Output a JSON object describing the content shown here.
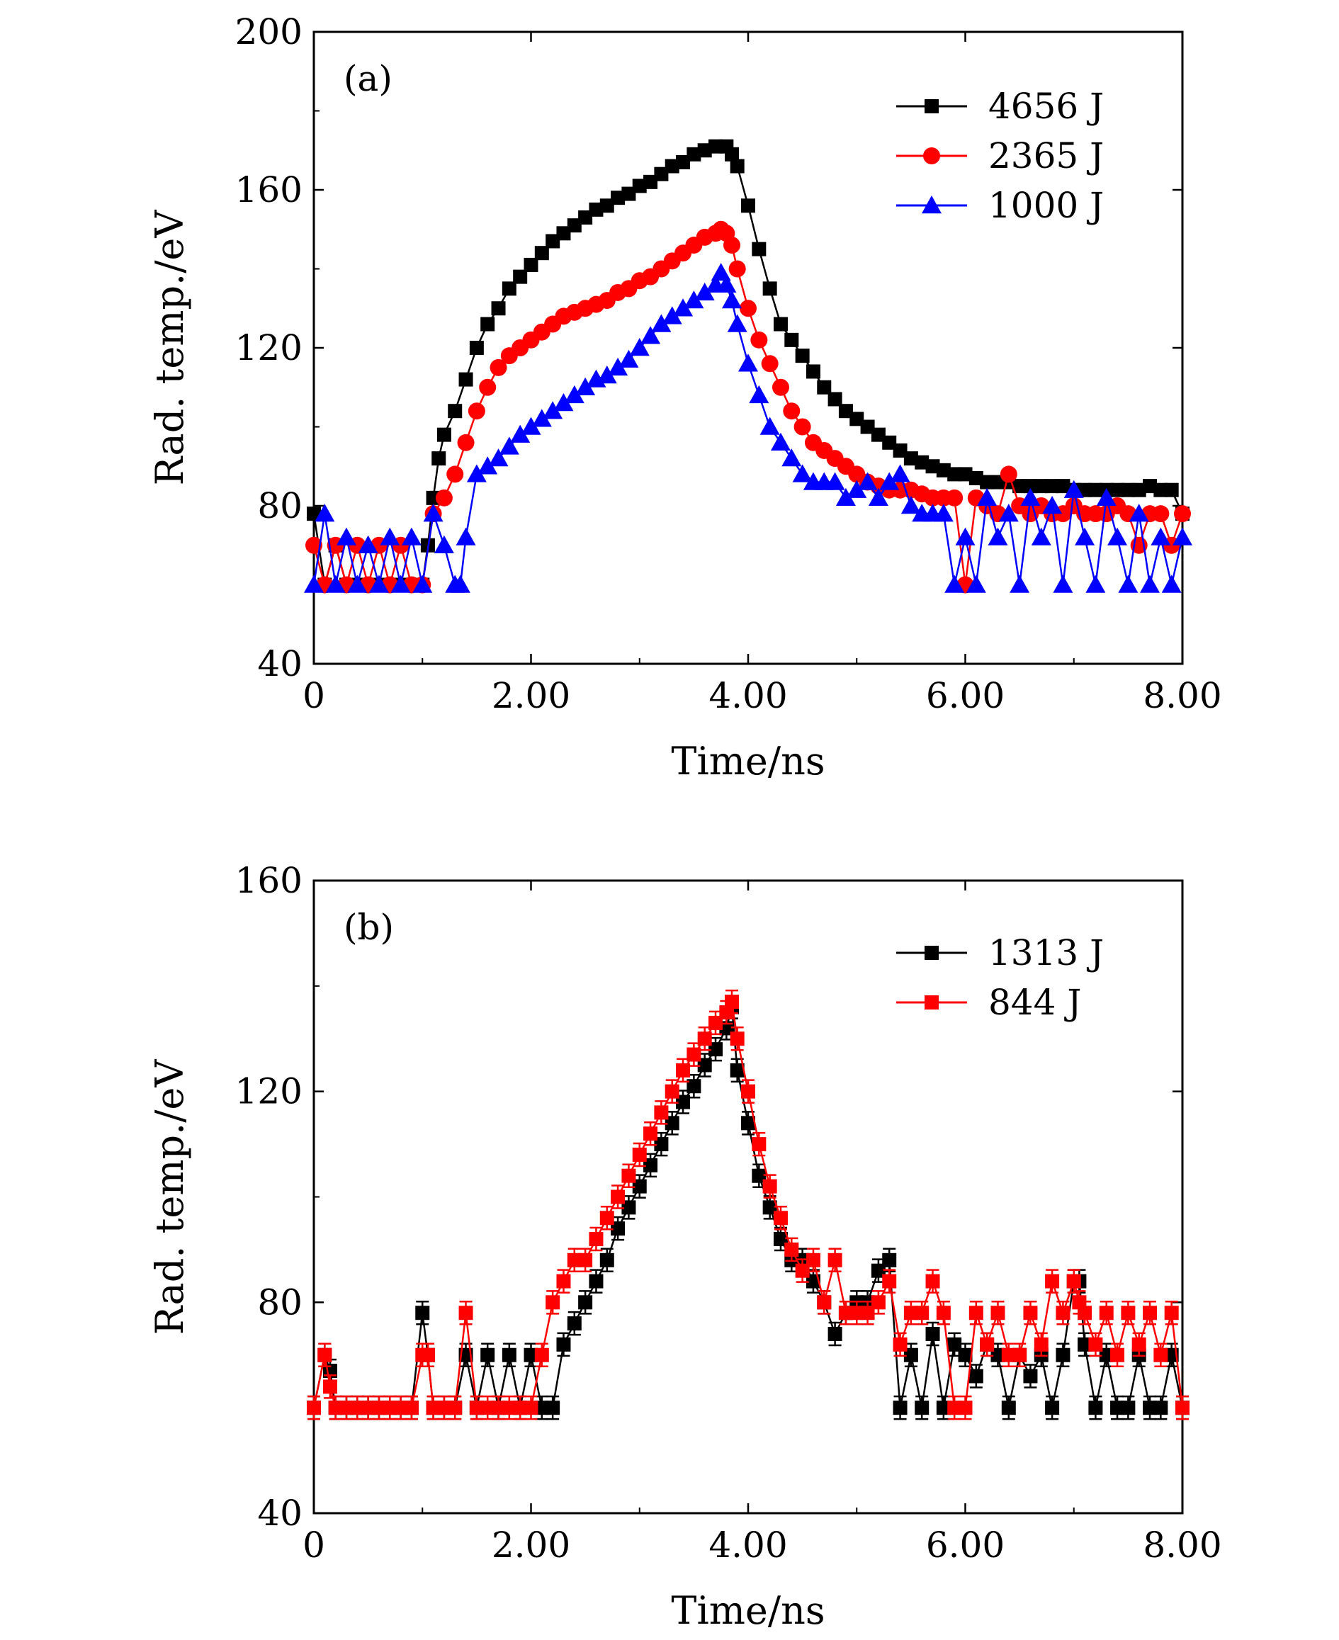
{
  "chart_data": [
    {
      "type": "line",
      "panel_label": "(a)",
      "xlabel": "Time/ns",
      "ylabel": "Rad. temp./eV",
      "xlim": [
        0,
        8.0
      ],
      "ylim": [
        40,
        200
      ],
      "x_ticks": [
        0,
        2,
        4,
        6,
        8
      ],
      "x_tick_labels": [
        "0",
        "2.00",
        "4.00",
        "6.00",
        "8.00"
      ],
      "y_ticks": [
        40,
        80,
        120,
        160,
        200
      ],
      "y_tick_labels": [
        "40",
        "80",
        "120",
        "160",
        "200"
      ],
      "grid": false,
      "legend_position": "top-right",
      "series": [
        {
          "name": "4656 J",
          "color": "#000000",
          "marker": "square",
          "x": [
            0,
            0.1,
            0.2,
            0.3,
            0.4,
            0.5,
            0.6,
            0.7,
            0.8,
            0.9,
            1.0,
            1.05,
            1.1,
            1.15,
            1.2,
            1.3,
            1.4,
            1.5,
            1.6,
            1.7,
            1.8,
            1.9,
            2.0,
            2.1,
            2.2,
            2.3,
            2.4,
            2.5,
            2.6,
            2.7,
            2.8,
            2.9,
            3.0,
            3.1,
            3.2,
            3.3,
            3.4,
            3.5,
            3.6,
            3.7,
            3.8,
            3.85,
            3.9,
            4.0,
            4.1,
            4.2,
            4.3,
            4.4,
            4.5,
            4.6,
            4.7,
            4.8,
            4.9,
            5.0,
            5.1,
            5.2,
            5.3,
            5.4,
            5.5,
            5.6,
            5.7,
            5.8,
            5.9,
            6.0,
            6.1,
            6.2,
            6.3,
            6.4,
            6.5,
            6.6,
            6.7,
            6.8,
            6.9,
            7.0,
            7.1,
            7.2,
            7.3,
            7.4,
            7.5,
            7.6,
            7.7,
            7.8,
            7.9,
            8.0
          ],
          "y": [
            78,
            60,
            70,
            60,
            60,
            60,
            60,
            60,
            60,
            60,
            60,
            70,
            82,
            92,
            98,
            104,
            112,
            120,
            126,
            130,
            135,
            138,
            141,
            144,
            147,
            149,
            151,
            153,
            155,
            156,
            158,
            159,
            161,
            162,
            164,
            166,
            167,
            169,
            170,
            171,
            171,
            169,
            166,
            156,
            145,
            135,
            126,
            122,
            118,
            114,
            110,
            107,
            104,
            102,
            100,
            98,
            96,
            94,
            92,
            91,
            90,
            89,
            88,
            88,
            87,
            86,
            86,
            86,
            85,
            85,
            85,
            85,
            85,
            84,
            84,
            84,
            84,
            84,
            84,
            84,
            85,
            84,
            84,
            78
          ]
        },
        {
          "name": "2365 J",
          "color": "#ff0000",
          "marker": "circle",
          "x": [
            0,
            0.1,
            0.2,
            0.3,
            0.4,
            0.5,
            0.6,
            0.7,
            0.8,
            0.9,
            1.0,
            1.1,
            1.2,
            1.3,
            1.4,
            1.5,
            1.6,
            1.7,
            1.8,
            1.9,
            2.0,
            2.1,
            2.2,
            2.3,
            2.4,
            2.5,
            2.6,
            2.7,
            2.8,
            2.9,
            3.0,
            3.1,
            3.2,
            3.3,
            3.4,
            3.5,
            3.6,
            3.7,
            3.75,
            3.8,
            3.85,
            3.9,
            4.0,
            4.1,
            4.2,
            4.3,
            4.4,
            4.5,
            4.6,
            4.7,
            4.8,
            4.9,
            5.0,
            5.1,
            5.2,
            5.3,
            5.4,
            5.5,
            5.6,
            5.7,
            5.8,
            5.9,
            6.0,
            6.1,
            6.2,
            6.3,
            6.4,
            6.5,
            6.6,
            6.7,
            6.8,
            6.9,
            7.0,
            7.1,
            7.2,
            7.3,
            7.4,
            7.5,
            7.6,
            7.7,
            7.8,
            7.9,
            8.0
          ],
          "y": [
            70,
            60,
            70,
            60,
            70,
            60,
            70,
            60,
            70,
            60,
            60,
            78,
            82,
            88,
            96,
            104,
            110,
            115,
            118,
            120,
            122,
            124,
            126,
            128,
            129,
            130,
            131,
            132,
            134,
            135,
            137,
            138,
            140,
            142,
            144,
            146,
            148,
            149,
            150,
            149,
            146,
            140,
            130,
            122,
            116,
            110,
            104,
            100,
            96,
            94,
            92,
            90,
            88,
            86,
            85,
            84,
            84,
            84,
            83,
            82,
            82,
            82,
            60,
            82,
            80,
            78,
            88,
            80,
            78,
            80,
            78,
            78,
            80,
            78,
            78,
            78,
            80,
            78,
            70,
            78,
            78,
            70,
            78
          ]
        },
        {
          "name": "1000 J",
          "color": "#0000ff",
          "marker": "triangle",
          "x": [
            0,
            0.1,
            0.2,
            0.3,
            0.4,
            0.5,
            0.6,
            0.7,
            0.8,
            0.9,
            1.0,
            1.1,
            1.2,
            1.3,
            1.35,
            1.4,
            1.5,
            1.6,
            1.7,
            1.8,
            1.9,
            2.0,
            2.1,
            2.2,
            2.3,
            2.4,
            2.5,
            2.6,
            2.7,
            2.8,
            2.9,
            3.0,
            3.1,
            3.2,
            3.3,
            3.4,
            3.5,
            3.6,
            3.7,
            3.75,
            3.8,
            3.85,
            3.9,
            4.0,
            4.1,
            4.2,
            4.3,
            4.4,
            4.5,
            4.6,
            4.7,
            4.8,
            4.9,
            5.0,
            5.1,
            5.2,
            5.3,
            5.4,
            5.5,
            5.6,
            5.7,
            5.8,
            5.9,
            6.0,
            6.1,
            6.2,
            6.3,
            6.4,
            6.5,
            6.6,
            6.7,
            6.8,
            6.9,
            7.0,
            7.1,
            7.2,
            7.3,
            7.4,
            7.5,
            7.6,
            7.7,
            7.8,
            7.9,
            8.0
          ],
          "y": [
            60,
            78,
            60,
            72,
            60,
            70,
            60,
            72,
            60,
            72,
            60,
            78,
            70,
            60,
            60,
            72,
            88,
            90,
            92,
            95,
            98,
            100,
            102,
            104,
            106,
            108,
            110,
            112,
            113,
            115,
            117,
            120,
            123,
            126,
            128,
            130,
            132,
            134,
            136,
            139,
            136,
            132,
            126,
            116,
            108,
            100,
            96,
            92,
            88,
            86,
            86,
            86,
            82,
            84,
            86,
            82,
            86,
            88,
            80,
            78,
            78,
            78,
            60,
            72,
            60,
            82,
            72,
            78,
            60,
            82,
            72,
            80,
            60,
            84,
            72,
            60,
            82,
            72,
            60,
            78,
            60,
            72,
            60,
            72
          ]
        }
      ]
    },
    {
      "type": "line",
      "panel_label": "(b)",
      "xlabel": "Time/ns",
      "ylabel": "Rad. temp./eV",
      "xlim": [
        0,
        8.0
      ],
      "ylim": [
        40,
        160
      ],
      "x_ticks": [
        0,
        2,
        4,
        6,
        8
      ],
      "x_tick_labels": [
        "0",
        "2.00",
        "4.00",
        "6.00",
        "8.00"
      ],
      "y_ticks": [
        40,
        80,
        120,
        160
      ],
      "y_tick_labels": [
        "40",
        "80",
        "120",
        "160"
      ],
      "grid": false,
      "legend_position": "top-right",
      "series": [
        {
          "name": "1313 J",
          "color": "#000000",
          "marker": "square",
          "error_bars": true,
          "x": [
            0,
            0.1,
            0.15,
            0.2,
            0.3,
            0.4,
            0.5,
            0.6,
            0.7,
            0.8,
            0.9,
            1.0,
            1.05,
            1.1,
            1.2,
            1.3,
            1.4,
            1.5,
            1.6,
            1.7,
            1.8,
            1.9,
            2.0,
            2.1,
            2.2,
            2.3,
            2.4,
            2.5,
            2.6,
            2.7,
            2.8,
            2.9,
            3.0,
            3.1,
            3.2,
            3.3,
            3.4,
            3.5,
            3.6,
            3.7,
            3.8,
            3.85,
            3.9,
            4.0,
            4.1,
            4.2,
            4.3,
            4.4,
            4.5,
            4.6,
            4.7,
            4.8,
            4.9,
            5.0,
            5.1,
            5.2,
            5.3,
            5.4,
            5.5,
            5.6,
            5.7,
            5.8,
            5.9,
            6.0,
            6.1,
            6.2,
            6.3,
            6.4,
            6.5,
            6.6,
            6.7,
            6.8,
            6.9,
            7.0,
            7.05,
            7.1,
            7.2,
            7.3,
            7.4,
            7.5,
            7.6,
            7.7,
            7.8,
            7.9,
            8.0
          ],
          "y": [
            60,
            70,
            67,
            60,
            60,
            60,
            60,
            60,
            60,
            60,
            60,
            78,
            70,
            60,
            60,
            60,
            70,
            60,
            70,
            60,
            70,
            60,
            70,
            60,
            60,
            72,
            76,
            80,
            84,
            88,
            94,
            98,
            102,
            106,
            110,
            114,
            118,
            121,
            125,
            128,
            132,
            136,
            124,
            114,
            104,
            98,
            92,
            88,
            88,
            84,
            80,
            74,
            78,
            80,
            80,
            86,
            88,
            60,
            70,
            60,
            74,
            60,
            72,
            70,
            66,
            72,
            70,
            60,
            70,
            66,
            70,
            60,
            70,
            84,
            84,
            72,
            60,
            70,
            60,
            60,
            70,
            60,
            60,
            70,
            60
          ]
        },
        {
          "name": "844 J",
          "color": "#ff0000",
          "marker": "square",
          "error_bars": true,
          "x": [
            0,
            0.1,
            0.15,
            0.2,
            0.3,
            0.4,
            0.5,
            0.6,
            0.7,
            0.8,
            0.9,
            1.0,
            1.05,
            1.1,
            1.2,
            1.3,
            1.4,
            1.5,
            1.6,
            1.7,
            1.8,
            1.9,
            2.0,
            2.1,
            2.2,
            2.3,
            2.4,
            2.5,
            2.6,
            2.7,
            2.8,
            2.9,
            3.0,
            3.1,
            3.2,
            3.3,
            3.4,
            3.5,
            3.6,
            3.7,
            3.8,
            3.85,
            3.9,
            4.0,
            4.1,
            4.2,
            4.3,
            4.4,
            4.5,
            4.6,
            4.7,
            4.8,
            4.9,
            5.0,
            5.1,
            5.2,
            5.3,
            5.4,
            5.5,
            5.6,
            5.7,
            5.8,
            5.9,
            6.0,
            6.1,
            6.2,
            6.3,
            6.4,
            6.5,
            6.6,
            6.7,
            6.8,
            6.9,
            7.0,
            7.05,
            7.1,
            7.2,
            7.3,
            7.4,
            7.5,
            7.6,
            7.7,
            7.8,
            7.9,
            8.0
          ],
          "y": [
            60,
            70,
            64,
            60,
            60,
            60,
            60,
            60,
            60,
            60,
            60,
            70,
            70,
            60,
            60,
            60,
            78,
            60,
            60,
            60,
            60,
            60,
            60,
            70,
            80,
            84,
            88,
            88,
            92,
            96,
            100,
            104,
            108,
            112,
            116,
            120,
            124,
            127,
            130,
            133,
            135,
            137,
            130,
            120,
            110,
            102,
            96,
            90,
            86,
            88,
            80,
            88,
            78,
            78,
            78,
            80,
            84,
            72,
            78,
            78,
            84,
            78,
            60,
            60,
            78,
            72,
            78,
            70,
            70,
            78,
            72,
            84,
            78,
            84,
            80,
            78,
            72,
            78,
            70,
            78,
            72,
            78,
            70,
            78,
            60
          ]
        }
      ]
    }
  ]
}
